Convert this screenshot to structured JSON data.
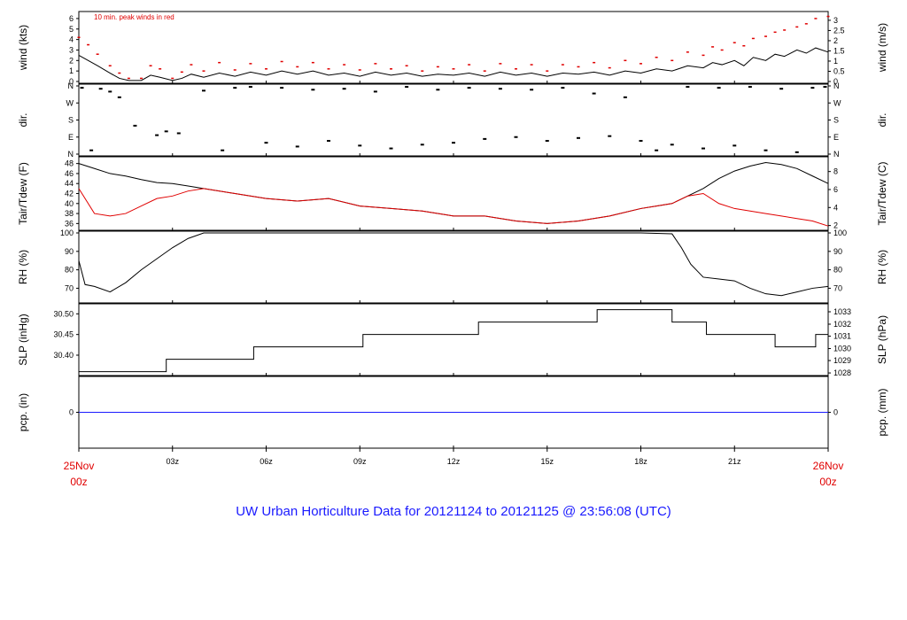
{
  "title": "UW Urban Horticulture Data for 20121124  to  20121125 @ 23:56:08  (UTC)",
  "start_label": [
    "25Nov",
    "00z"
  ],
  "end_label": [
    "26Nov",
    "00z"
  ],
  "x_ticks": [
    "03z",
    "06z",
    "09z",
    "12z",
    "15z",
    "18z",
    "21z"
  ],
  "colors": {
    "red": "#e00000",
    "blue": "#1a1aff",
    "black": "#000000"
  },
  "chart_data": [
    {
      "type": "line",
      "id": "wind",
      "ylabel_left": "wind (kts)",
      "ylabel_right": "wind (m/s)",
      "ylim": [
        0,
        6.5
      ],
      "yticks_left": [
        0,
        1,
        2,
        3,
        4,
        5,
        6
      ],
      "yticks_right": [
        "0",
        "0.5",
        "1",
        "1.5",
        "2",
        "2.5",
        "3"
      ],
      "yticks_right_values": [
        0,
        0.5,
        1,
        1.5,
        2,
        2.5,
        3
      ],
      "right_scale": 1.94384,
      "annotation": "10 min. peak winds in red",
      "x": [
        0,
        0.3,
        0.6,
        1,
        1.3,
        1.6,
        2,
        2.3,
        2.6,
        3,
        3.3,
        3.6,
        4,
        4.5,
        5,
        5.5,
        6,
        6.5,
        7,
        7.5,
        8,
        8.5,
        9,
        9.5,
        10,
        10.5,
        11,
        11.5,
        12,
        12.5,
        13,
        13.5,
        14,
        14.5,
        15,
        15.5,
        16,
        16.5,
        17,
        17.5,
        18,
        18.5,
        19,
        19.5,
        20,
        20.3,
        20.6,
        21,
        21.3,
        21.6,
        22,
        22.3,
        22.6,
        23,
        23.3,
        23.6,
        24
      ],
      "series": [
        {
          "name": "wind",
          "values": [
            2.5,
            2.0,
            1.5,
            0.8,
            0.3,
            0.1,
            0.1,
            0.6,
            0.4,
            0.1,
            0.3,
            0.7,
            0.4,
            0.8,
            0.5,
            0.9,
            0.6,
            1.0,
            0.7,
            1.0,
            0.6,
            0.8,
            0.5,
            0.9,
            0.6,
            0.8,
            0.5,
            0.7,
            0.6,
            0.8,
            0.5,
            0.9,
            0.6,
            0.8,
            0.5,
            0.8,
            0.7,
            0.9,
            0.6,
            1.0,
            0.8,
            1.2,
            1.0,
            1.5,
            1.3,
            1.8,
            1.6,
            2.0,
            1.5,
            2.3,
            2.0,
            2.6,
            2.4,
            3.0,
            2.7,
            3.2,
            2.8
          ]
        },
        {
          "name": "10 min. peak winds",
          "values": [
            4.2,
            3.5,
            2.6,
            1.5,
            0.8,
            0.3,
            0.3,
            1.5,
            1.2,
            0.3,
            0.9,
            1.6,
            1.0,
            1.8,
            1.1,
            1.7,
            1.2,
            1.9,
            1.4,
            1.8,
            1.2,
            1.6,
            1.1,
            1.7,
            1.2,
            1.5,
            1.0,
            1.4,
            1.2,
            1.6,
            1.0,
            1.7,
            1.2,
            1.6,
            1.0,
            1.6,
            1.4,
            1.8,
            1.3,
            2.0,
            1.7,
            2.3,
            2.0,
            2.8,
            2.5,
            3.3,
            3.0,
            3.7,
            3.4,
            4.1,
            4.3,
            4.7,
            4.9,
            5.2,
            5.5,
            6.0,
            6.2
          ]
        }
      ]
    },
    {
      "type": "scatter",
      "id": "dir",
      "ylabel_left": "dir.",
      "ylabel_right": "dir.",
      "ytick_labels": [
        "N",
        "E",
        "S",
        "W",
        "N"
      ],
      "ylim": [
        0,
        360
      ],
      "x": [
        0.1,
        0.4,
        0.7,
        1.0,
        1.3,
        1.8,
        2.5,
        2.8,
        3.2,
        4.0,
        4.6,
        5.0,
        5.5,
        6.0,
        6.5,
        7.0,
        7.5,
        8.0,
        8.5,
        9.0,
        9.5,
        10.0,
        10.5,
        11.0,
        11.5,
        12.0,
        12.5,
        13.0,
        13.5,
        14.0,
        14.5,
        15.0,
        15.5,
        16.0,
        16.5,
        17.0,
        17.5,
        18.0,
        18.5,
        19.0,
        19.5,
        20.0,
        20.5,
        21.0,
        21.5,
        22.0,
        22.5,
        23.0,
        23.5,
        23.9
      ],
      "values": [
        350,
        20,
        345,
        330,
        300,
        150,
        100,
        120,
        110,
        335,
        20,
        350,
        355,
        60,
        350,
        40,
        340,
        70,
        345,
        45,
        330,
        30,
        355,
        50,
        340,
        60,
        350,
        80,
        345,
        90,
        340,
        70,
        350,
        85,
        320,
        95,
        300,
        70,
        20,
        50,
        355,
        30,
        350,
        45,
        355,
        20,
        345,
        10,
        350,
        355
      ]
    },
    {
      "type": "line",
      "id": "temp",
      "ylabel_left": "Tair/Tdew (F)",
      "ylabel_right": "Tair/Tdew (C)",
      "ylim": [
        35,
        49
      ],
      "yticks_left": [
        36,
        38,
        40,
        42,
        44,
        46,
        48
      ],
      "yticks_right": [
        "2",
        "4",
        "6",
        "8"
      ],
      "yticks_right_values": [
        35.6,
        39.2,
        42.8,
        46.4
      ],
      "x": [
        0,
        0.5,
        1,
        1.5,
        2,
        2.5,
        3,
        3.5,
        4,
        5,
        6,
        7,
        8,
        9,
        10,
        11,
        12,
        13,
        14,
        15,
        16,
        17,
        18,
        18.5,
        19,
        19.5,
        20,
        20.5,
        21,
        21.5,
        22,
        22.5,
        23,
        23.5,
        24
      ],
      "series": [
        {
          "name": "Tair",
          "values": [
            48,
            47,
            46,
            45.5,
            44.8,
            44.2,
            44,
            43.5,
            43,
            42,
            41,
            40.5,
            41,
            39.5,
            39,
            38.5,
            37.5,
            37.5,
            36.5,
            36,
            36.5,
            37.5,
            39,
            39.5,
            40,
            41.5,
            43,
            45,
            46.5,
            47.5,
            48.2,
            47.8,
            47,
            45.5,
            44
          ]
        },
        {
          "name": "Tdew",
          "values": [
            43,
            38,
            37.5,
            38,
            39.5,
            41,
            41.5,
            42.5,
            43,
            42,
            41,
            40.5,
            41,
            39.5,
            39,
            38.5,
            37.5,
            37.5,
            36.5,
            36,
            36.5,
            37.5,
            39,
            39.5,
            40,
            41.5,
            42,
            40,
            39,
            38.5,
            38,
            37.5,
            37,
            36.5,
            35.5
          ]
        }
      ]
    },
    {
      "type": "line",
      "id": "rh",
      "ylabel_left": "RH (%)",
      "ylabel_right": "RH (%)",
      "ylim": [
        63,
        100
      ],
      "yticks_left": [
        70,
        80,
        90,
        100
      ],
      "yticks_right": [
        "70",
        "80",
        "90",
        "100"
      ],
      "yticks_right_values": [
        70,
        80,
        90,
        100
      ],
      "x": [
        0,
        0.2,
        0.5,
        1,
        1.5,
        2,
        2.5,
        3,
        3.5,
        4,
        6,
        8,
        10,
        12,
        14,
        16,
        18,
        19,
        19.3,
        19.6,
        20,
        20.5,
        21,
        21.5,
        22,
        22.5,
        23,
        23.5,
        24
      ],
      "series": [
        {
          "name": "RH",
          "values": [
            85,
            72,
            71,
            68,
            73,
            80,
            86,
            92,
            97,
            100,
            100,
            100,
            100,
            100,
            100,
            100,
            100,
            99.5,
            92,
            83,
            76,
            75,
            74,
            70,
            67,
            66,
            68,
            70,
            71
          ]
        }
      ]
    },
    {
      "type": "line",
      "id": "slp",
      "step": true,
      "ylabel_left": "SLP (inHg)",
      "ylabel_right": "SLP (hPa)",
      "ylim": [
        30.355,
        30.52
      ],
      "yticks_left": [
        30.4,
        30.45,
        30.5
      ],
      "yticks_left_labels": [
        "30.40",
        "30.45",
        "30.50"
      ],
      "yticks_right": [
        "1028",
        "1029",
        "1030",
        "1031",
        "1032",
        "1033"
      ],
      "yticks_right_values": [
        30.357,
        30.387,
        30.416,
        30.446,
        30.475,
        30.505
      ],
      "x": [
        0,
        2.8,
        5.6,
        9.1,
        12.8,
        16.6,
        19.0,
        20.1,
        22.3,
        23.6,
        24
      ],
      "series": [
        {
          "name": "SLP",
          "values": [
            30.36,
            30.39,
            30.42,
            30.45,
            30.48,
            30.51,
            30.48,
            30.45,
            30.42,
            30.45,
            30.45
          ]
        }
      ]
    },
    {
      "type": "line",
      "id": "pcp",
      "ylabel_left": "pcp. (in)",
      "ylabel_right": "pcp. (mm)",
      "ylim": [
        -1,
        1
      ],
      "yticks_left": [
        0
      ],
      "yticks_right": [
        "0"
      ],
      "yticks_right_values": [
        0
      ],
      "x": [
        0,
        24
      ],
      "series": [
        {
          "name": "pcp",
          "values": [
            0,
            0
          ]
        }
      ]
    }
  ]
}
